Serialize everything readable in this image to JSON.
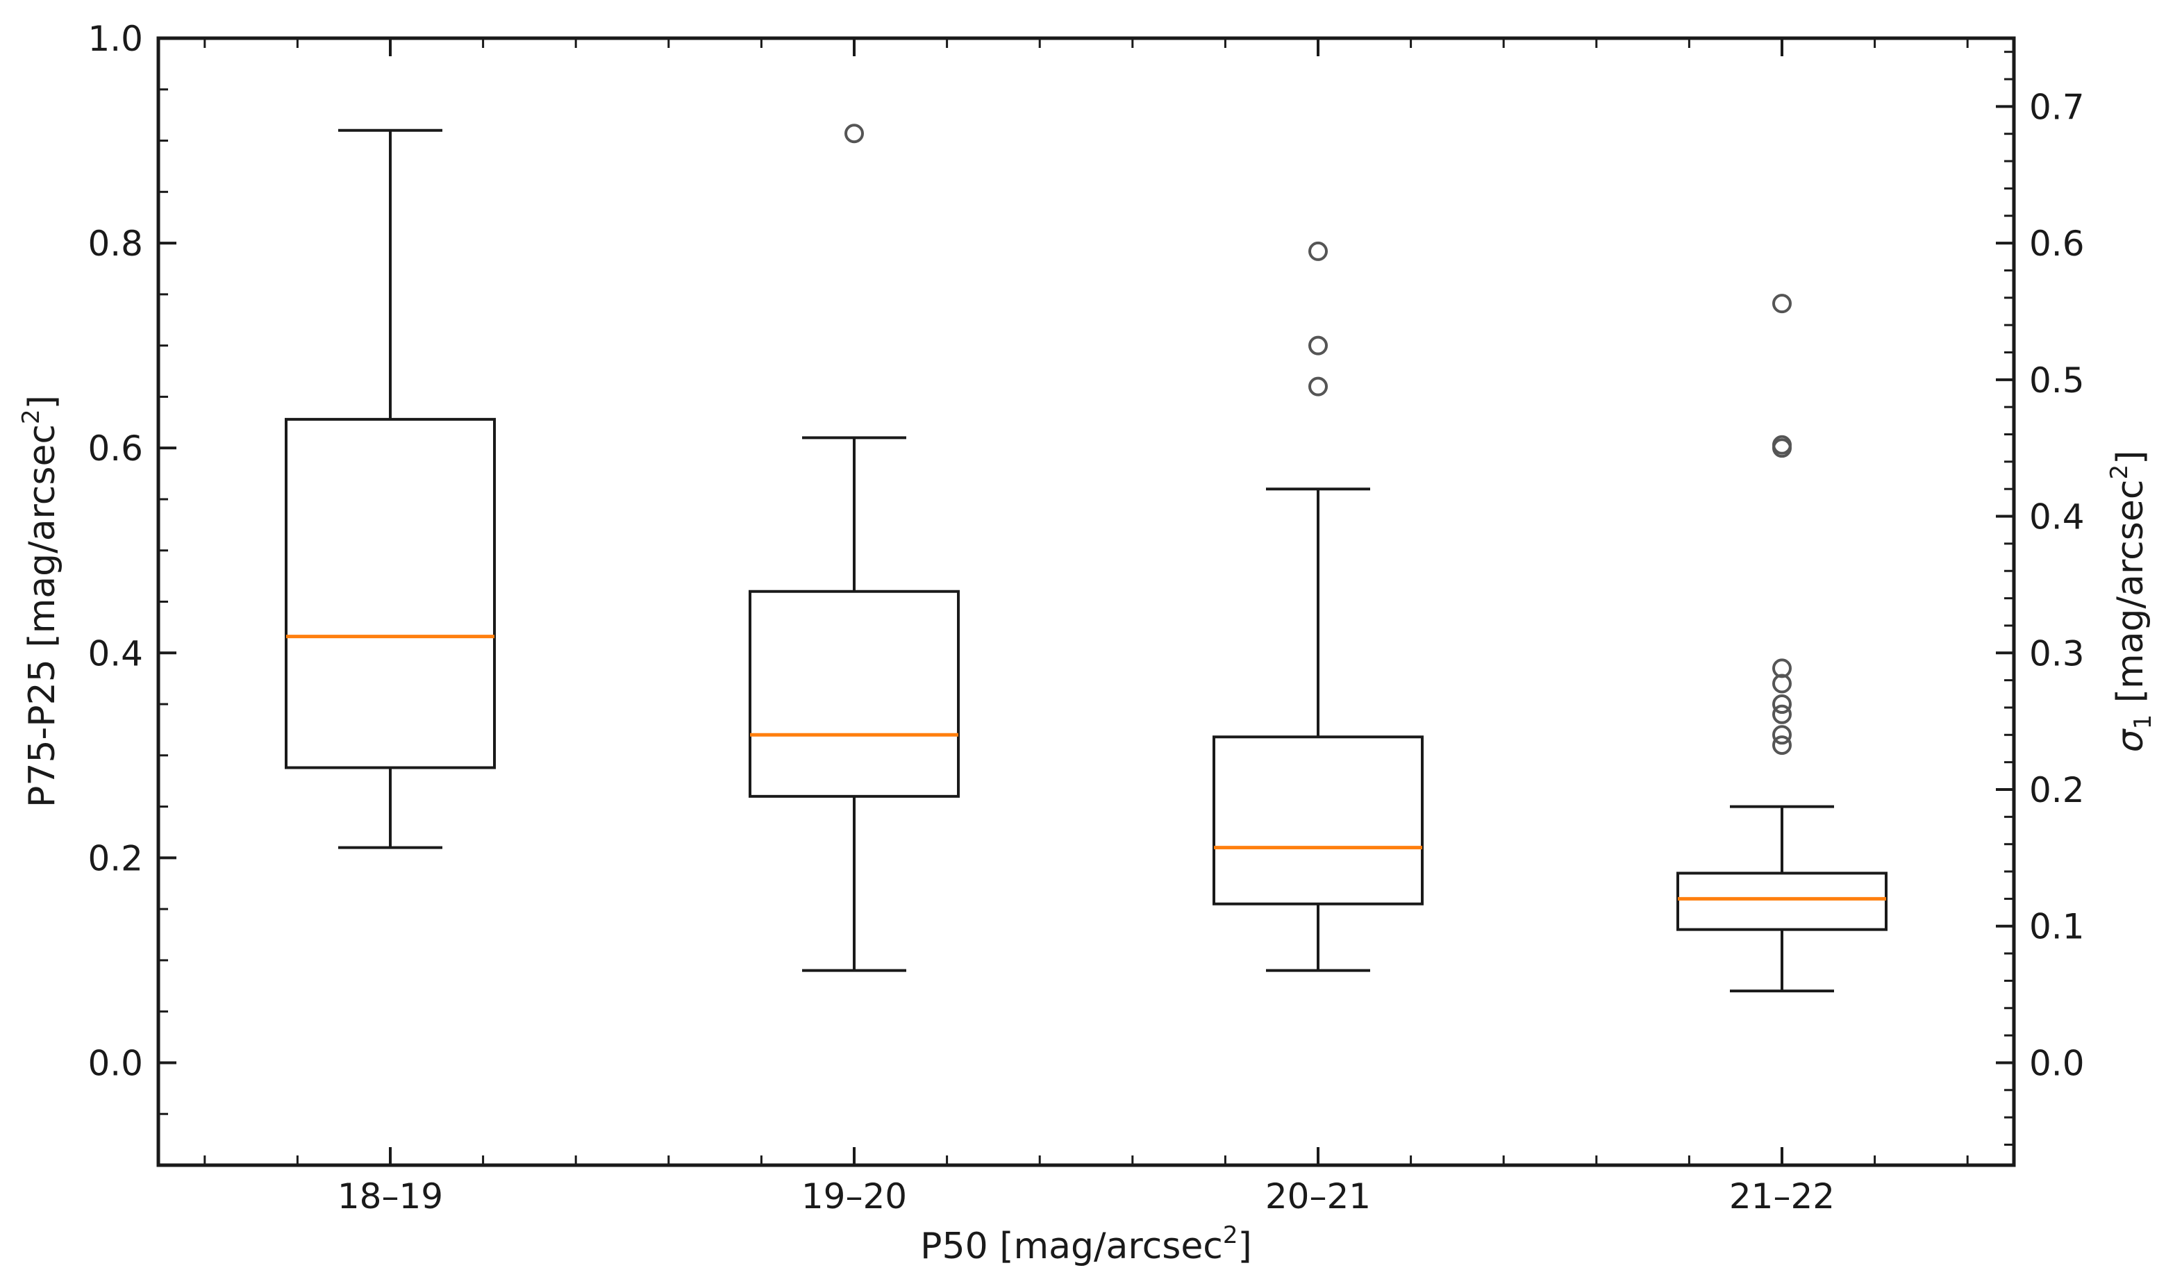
{
  "chart_data": {
    "type": "box",
    "categories": [
      "18–19",
      "19–20",
      "20–21",
      "21–22"
    ],
    "xlabel": {
      "main": "P50 [mag/arcsec",
      "sup": "2",
      "end": "]"
    },
    "ylabel_left": {
      "main": "P75-P25 [mag/arcsec",
      "sup": "2",
      "end": "]"
    },
    "ylabel_right": {
      "symbol": "σ",
      "sub": "1",
      "main": " [mag/arcsec",
      "sup": "2",
      "end": "]"
    },
    "ylim_left": [
      -0.1,
      1.0
    ],
    "ylim_right": [
      -0.075,
      0.75
    ],
    "yticks_left": [
      0.0,
      0.2,
      0.4,
      0.6,
      0.8,
      1.0
    ],
    "yticks_left_labels": [
      "0.0",
      "0.2",
      "0.4",
      "0.6",
      "0.8",
      "1.0"
    ],
    "yticks_right": [
      0.0,
      0.1,
      0.2,
      0.3,
      0.4,
      0.5,
      0.6,
      0.7
    ],
    "yticks_right_labels": [
      "0.0",
      "0.1",
      "0.2",
      "0.3",
      "0.4",
      "0.5",
      "0.6",
      "0.7"
    ],
    "boxes": [
      {
        "category": "18–19",
        "whisker_low": 0.21,
        "q1": 0.288,
        "median": 0.416,
        "q3": 0.628,
        "whisker_high": 0.91,
        "outliers": []
      },
      {
        "category": "19–20",
        "whisker_low": 0.09,
        "q1": 0.26,
        "median": 0.32,
        "q3": 0.46,
        "whisker_high": 0.61,
        "outliers": [
          0.907
        ]
      },
      {
        "category": "20–21",
        "whisker_low": 0.09,
        "q1": 0.155,
        "median": 0.21,
        "q3": 0.318,
        "whisker_high": 0.56,
        "outliers": [
          0.66,
          0.7,
          0.792
        ]
      },
      {
        "category": "21–22",
        "whisker_low": 0.07,
        "q1": 0.13,
        "median": 0.16,
        "q3": 0.185,
        "whisker_high": 0.25,
        "outliers": [
          0.31,
          0.32,
          0.34,
          0.35,
          0.37,
          0.385,
          0.6,
          0.603,
          0.741
        ]
      }
    ],
    "grid": false,
    "colors": {
      "box": "#1a1a1a",
      "median": "#ff7f0e",
      "outlier": "#555555",
      "axes": "#1a1a1a"
    }
  }
}
